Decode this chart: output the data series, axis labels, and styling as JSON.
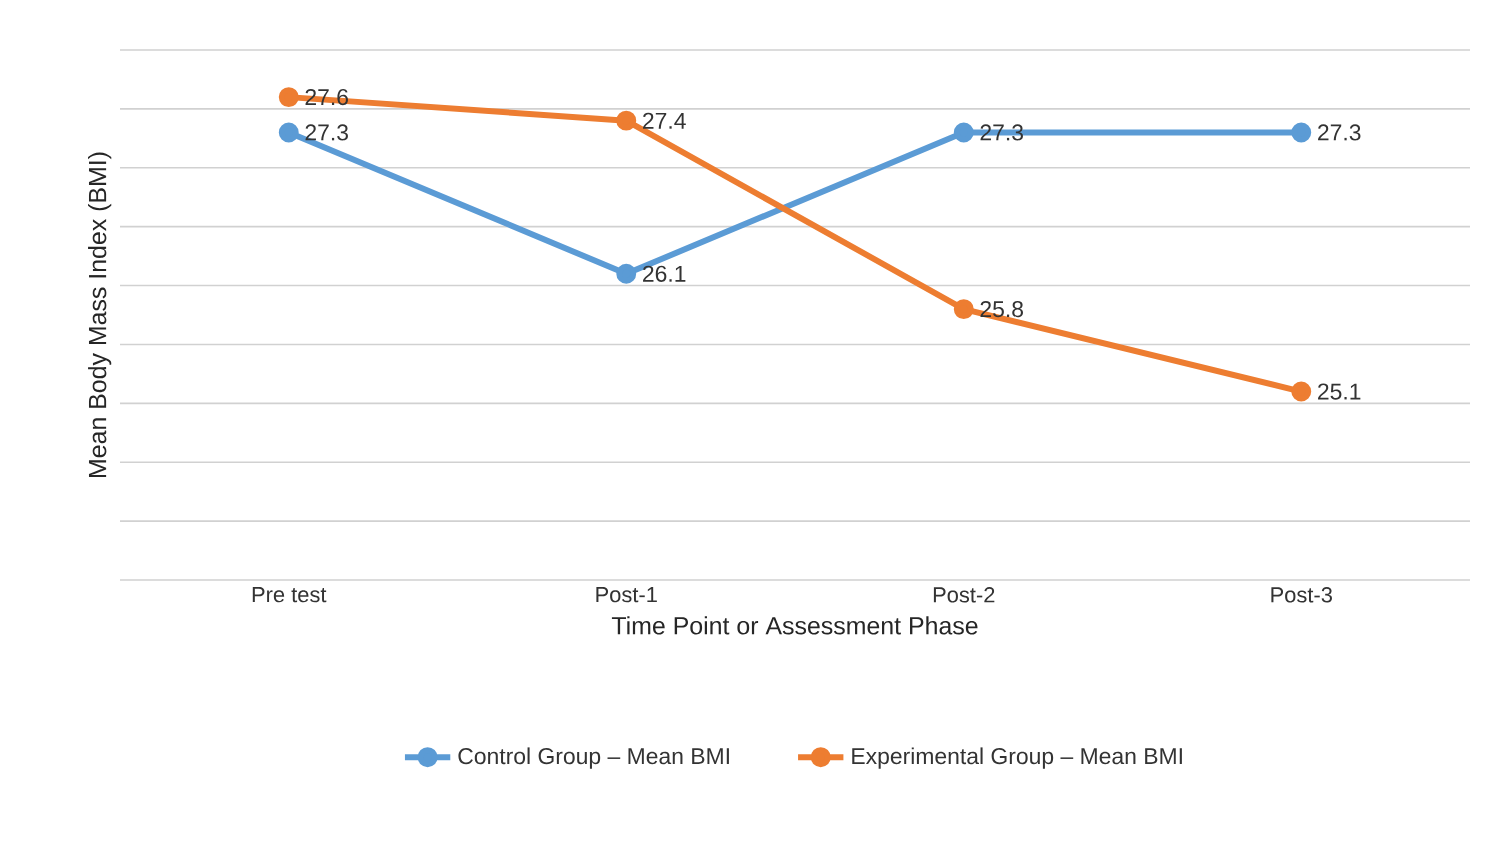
{
  "chart_data": {
    "type": "line",
    "xlabel": "Time Point or Assessment Phase",
    "ylabel": "Mean Body Mass Index (BMI)",
    "categories": [
      "Pre test",
      "Post-1",
      "Post-2",
      "Post-3"
    ],
    "series": [
      {
        "name": "Control Group – Mean BMI",
        "color": "#5b9bd5",
        "values": [
          27.3,
          26.1,
          27.3,
          27.3
        ]
      },
      {
        "name": "Experimental Group – Mean BMI",
        "color": "#ed7d31",
        "values": [
          27.6,
          27.4,
          25.8,
          25.1
        ]
      }
    ],
    "ylim": [
      23.5,
      28
    ],
    "yticks": [
      {
        "value": 23.5,
        "label": null
      },
      {
        "value": 24,
        "label": null
      },
      {
        "value": 24.5,
        "label": null
      },
      {
        "value": 25,
        "label": null
      },
      {
        "value": 25.5,
        "label": null
      },
      {
        "value": 26,
        "label": null
      },
      {
        "value": 26.5,
        "label": null
      },
      {
        "value": 27,
        "label": null
      },
      {
        "value": 27.5,
        "label": null
      },
      {
        "value": 28,
        "label": null
      }
    ],
    "tick_labels": "x",
    "grid": "y",
    "legend": "bottom",
    "marker": "circle",
    "line_style": "solid",
    "data_labels": true
  }
}
